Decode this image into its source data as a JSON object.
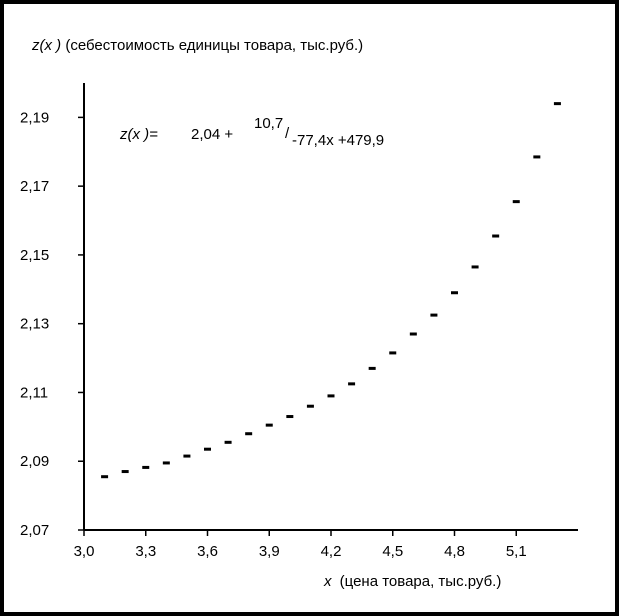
{
  "chart_data": {
    "type": "scatter",
    "title": "",
    "ylabel_var": "z(x )",
    "ylabel_desc": "(себестоимость единицы товара, тыс.руб.)",
    "xlabel_var": "x",
    "xlabel_desc": "(цена товара, тыс.руб.)",
    "formula": {
      "lhs": "z(x )=",
      "const": "2,04 +",
      "numerator": "10,7",
      "slash": "/",
      "denominator": "-77,4x +479,9"
    },
    "xlim": [
      3.0,
      5.4
    ],
    "ylim": [
      2.07,
      2.2
    ],
    "x_ticks": [
      "3,0",
      "3,3",
      "3,6",
      "3,9",
      "4,2",
      "4,5",
      "4,8",
      "5,1"
    ],
    "x_tick_values": [
      3.0,
      3.3,
      3.6,
      3.9,
      4.2,
      4.5,
      4.8,
      5.1
    ],
    "y_ticks": [
      "2,07",
      "2,09",
      "2,11",
      "2,13",
      "2,15",
      "2,17",
      "2,19"
    ],
    "y_tick_values": [
      2.07,
      2.09,
      2.11,
      2.13,
      2.15,
      2.17,
      2.19
    ],
    "grid": false,
    "series": [
      {
        "marker_color": "#000000",
        "points": [
          {
            "x": 3.1,
            "y": 2.0855
          },
          {
            "x": 3.2,
            "y": 2.087
          },
          {
            "x": 3.3,
            "y": 2.0882
          },
          {
            "x": 3.4,
            "y": 2.0895
          },
          {
            "x": 3.5,
            "y": 2.0915
          },
          {
            "x": 3.6,
            "y": 2.0935
          },
          {
            "x": 3.7,
            "y": 2.0955
          },
          {
            "x": 3.8,
            "y": 2.098
          },
          {
            "x": 3.9,
            "y": 2.1005
          },
          {
            "x": 4.0,
            "y": 2.103
          },
          {
            "x": 4.1,
            "y": 2.106
          },
          {
            "x": 4.2,
            "y": 2.109
          },
          {
            "x": 4.3,
            "y": 2.1125
          },
          {
            "x": 4.4,
            "y": 2.117
          },
          {
            "x": 4.5,
            "y": 2.1215
          },
          {
            "x": 4.6,
            "y": 2.127
          },
          {
            "x": 4.7,
            "y": 2.1325
          },
          {
            "x": 4.8,
            "y": 2.139
          },
          {
            "x": 4.9,
            "y": 2.1465
          },
          {
            "x": 5.0,
            "y": 2.1555
          },
          {
            "x": 5.1,
            "y": 2.1655
          },
          {
            "x": 5.2,
            "y": 2.1785
          },
          {
            "x": 5.3,
            "y": 2.194
          }
        ]
      }
    ]
  }
}
